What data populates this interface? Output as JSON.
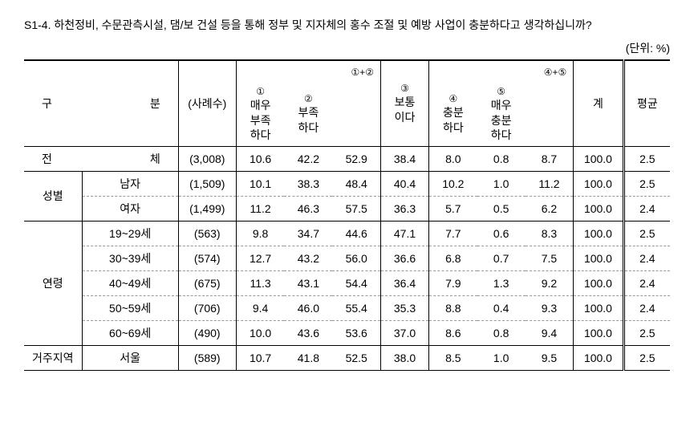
{
  "question": "S1-4. 하천정비, 수문관측시설, 댐/보 건설 등을 통해 정부 및 지자체의 홍수 조절 및 예방 사업이 충분하다고 생각하십니까?",
  "unit": "(단위: %)",
  "header": {
    "category_a": "구",
    "category_b": "분",
    "sample": "(사례수)",
    "c1_sup": "①",
    "c1": "매우\n부족\n하다",
    "c2_sup": "②",
    "c2": "부족\n하다",
    "g12": "①+②",
    "c3_sup": "③",
    "c3": "보통\n이다",
    "c4_sup": "④",
    "c4": "충분\n하다",
    "c5_sup": "⑤",
    "c5": "매우\n충분\n하다",
    "g45": "④+⑤",
    "total": "계",
    "avg": "평균"
  },
  "groups": {
    "all_a": "전",
    "all_b": "체",
    "gender": "성별",
    "male": "남자",
    "female": "여자",
    "age": "연령",
    "a19": "19~29세",
    "a30": "30~39세",
    "a40": "40~49세",
    "a50": "50~59세",
    "a60": "60~69세",
    "region": "거주지역",
    "seoul": "서울"
  },
  "rows": {
    "all": {
      "n": "(3,008)",
      "v1": "10.6",
      "v2": "42.2",
      "s12": "52.9",
      "v3": "38.4",
      "v4": "8.0",
      "v5": "0.8",
      "s45": "8.7",
      "tot": "100.0",
      "avg": "2.5"
    },
    "male": {
      "n": "(1,509)",
      "v1": "10.1",
      "v2": "38.3",
      "s12": "48.4",
      "v3": "40.4",
      "v4": "10.2",
      "v5": "1.0",
      "s45": "11.2",
      "tot": "100.0",
      "avg": "2.5"
    },
    "female": {
      "n": "(1,499)",
      "v1": "11.2",
      "v2": "46.3",
      "s12": "57.5",
      "v3": "36.3",
      "v4": "5.7",
      "v5": "0.5",
      "s45": "6.2",
      "tot": "100.0",
      "avg": "2.4"
    },
    "a19": {
      "n": "(563)",
      "v1": "9.8",
      "v2": "34.7",
      "s12": "44.6",
      "v3": "47.1",
      "v4": "7.7",
      "v5": "0.6",
      "s45": "8.3",
      "tot": "100.0",
      "avg": "2.5"
    },
    "a30": {
      "n": "(574)",
      "v1": "12.7",
      "v2": "43.2",
      "s12": "56.0",
      "v3": "36.6",
      "v4": "6.8",
      "v5": "0.7",
      "s45": "7.5",
      "tot": "100.0",
      "avg": "2.4"
    },
    "a40": {
      "n": "(675)",
      "v1": "11.3",
      "v2": "43.1",
      "s12": "54.4",
      "v3": "36.4",
      "v4": "7.9",
      "v5": "1.3",
      "s45": "9.2",
      "tot": "100.0",
      "avg": "2.4"
    },
    "a50": {
      "n": "(706)",
      "v1": "9.4",
      "v2": "46.0",
      "s12": "55.4",
      "v3": "35.3",
      "v4": "8.8",
      "v5": "0.4",
      "s45": "9.3",
      "tot": "100.0",
      "avg": "2.4"
    },
    "a60": {
      "n": "(490)",
      "v1": "10.0",
      "v2": "43.6",
      "s12": "53.6",
      "v3": "37.0",
      "v4": "8.6",
      "v5": "0.8",
      "s45": "9.4",
      "tot": "100.0",
      "avg": "2.5"
    },
    "seoul": {
      "n": "(589)",
      "v1": "10.7",
      "v2": "41.8",
      "s12": "52.5",
      "v3": "38.0",
      "v4": "8.5",
      "v5": "1.0",
      "s45": "9.5",
      "tot": "100.0",
      "avg": "2.5"
    }
  }
}
